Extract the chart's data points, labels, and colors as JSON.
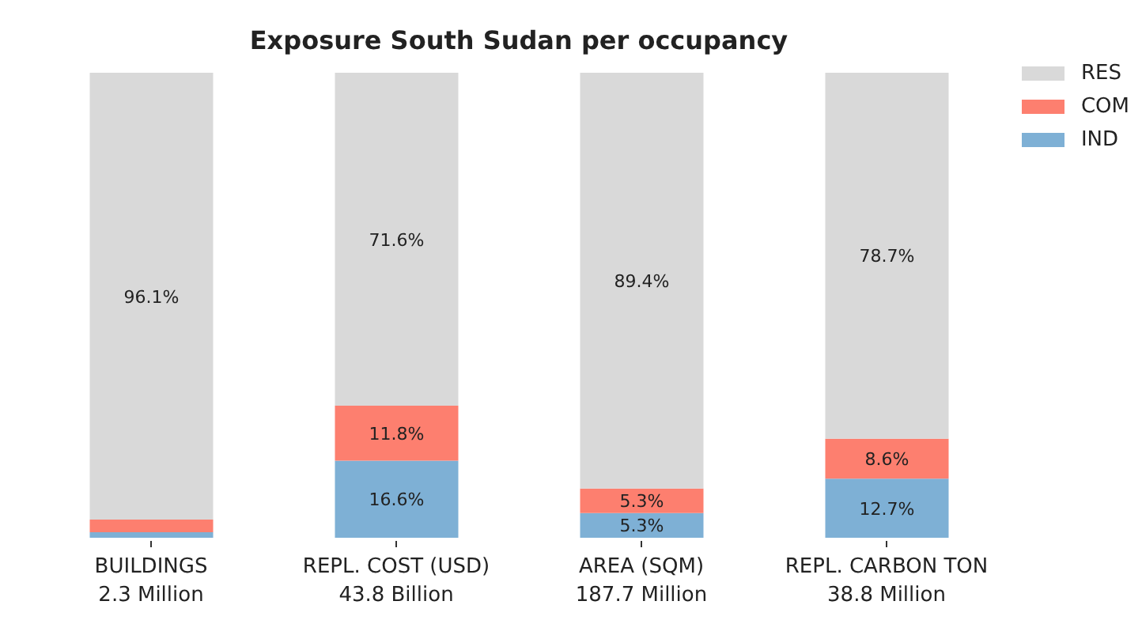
{
  "chart_data": {
    "type": "bar",
    "title": "Exposure South Sudan per occupancy",
    "stacked": true,
    "categories": [
      "BUILDINGS\n2.3 Million",
      "REPL. COST (USD)\n43.8 Billion",
      "AREA (SQM)\n187.7 Million",
      "REPL. CARBON TON\n38.8 Million"
    ],
    "series": [
      {
        "name": "IND",
        "color": "#7eb0d5",
        "values": [
          1.2,
          16.6,
          5.3,
          12.7
        ],
        "value_labels": [
          null,
          "16.6%",
          "5.3%",
          "12.7%"
        ]
      },
      {
        "name": "COM",
        "color": "#fd7f6f",
        "values": [
          2.7,
          11.8,
          5.3,
          8.6
        ],
        "value_labels": [
          null,
          "11.8%",
          "5.3%",
          "8.6%"
        ]
      },
      {
        "name": "RES",
        "color": "#d9d9d9",
        "values": [
          96.1,
          71.6,
          89.4,
          78.7
        ],
        "value_labels": [
          "96.1%",
          "71.6%",
          "89.4%",
          "78.7%"
        ]
      }
    ],
    "legend": "top right",
    "grid": false
  }
}
